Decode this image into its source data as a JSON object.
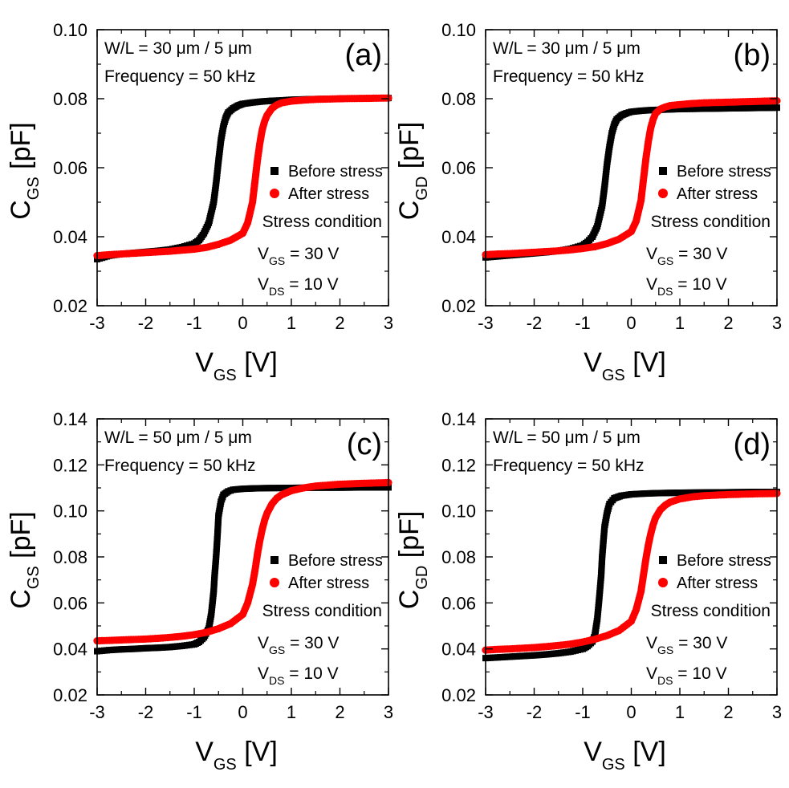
{
  "chart_data": [
    {
      "type": "scatter",
      "panel_label": "(a)",
      "xlabel": {
        "main": "V",
        "sub": "GS",
        "unit": " [V]"
      },
      "ylabel": {
        "main": "C",
        "sub": "GS",
        "unit": " [pF]"
      },
      "xlim": [
        -3,
        3
      ],
      "ylim": [
        0.02,
        0.1
      ],
      "xticks": [
        -3,
        -2,
        -1,
        0,
        1,
        2,
        3
      ],
      "yticks": [
        0.02,
        0.04,
        0.06,
        0.08,
        0.1
      ],
      "xtick_labels": [
        "-3",
        "-2",
        "-1",
        "0",
        "1",
        "2",
        "3"
      ],
      "ytick_labels": [
        "0.02",
        "0.04",
        "0.06",
        "0.08",
        "0.10"
      ],
      "annotation_lines": [
        "W/L = 30 μm / 5 μm",
        "Frequency = 50 kHz"
      ],
      "legend_placement": "right-middle",
      "stress_condition": {
        "title": "Stress condition",
        "lines": [
          {
            "main": "V",
            "sub": "GS",
            "rest": " = 30 V"
          },
          {
            "main": "V",
            "sub": "DS",
            "rest": " = 10 V"
          }
        ]
      },
      "series": [
        {
          "name": "Before stress",
          "marker": "square",
          "color": "#000000",
          "x": [
            -3.0,
            -2.75,
            -2.5,
            -2.25,
            -2.0,
            -1.75,
            -1.5,
            -1.25,
            -1.0,
            -0.9,
            -0.8,
            -0.7,
            -0.6,
            -0.55,
            -0.5,
            -0.45,
            -0.4,
            -0.35,
            -0.3,
            -0.2,
            -0.1,
            0.0,
            0.2,
            0.4,
            0.6,
            0.8,
            1.0,
            1.5,
            2.0,
            2.5,
            3.0
          ],
          "y": [
            0.0335,
            0.0345,
            0.035,
            0.0353,
            0.0356,
            0.0359,
            0.0363,
            0.037,
            0.038,
            0.039,
            0.041,
            0.044,
            0.05,
            0.0555,
            0.062,
            0.068,
            0.072,
            0.0745,
            0.076,
            0.0772,
            0.078,
            0.0785,
            0.0789,
            0.0792,
            0.0794,
            0.0795,
            0.0797,
            0.0799,
            0.08,
            0.0801,
            0.0802
          ]
        },
        {
          "name": "After stress",
          "marker": "circle",
          "color": "#ff0000",
          "x": [
            -3.0,
            -2.75,
            -2.5,
            -2.25,
            -2.0,
            -1.75,
            -1.5,
            -1.25,
            -1.0,
            -0.75,
            -0.5,
            -0.25,
            0.0,
            0.1,
            0.2,
            0.25,
            0.3,
            0.35,
            0.4,
            0.45,
            0.5,
            0.6,
            0.7,
            0.8,
            1.0,
            1.25,
            1.5,
            2.0,
            2.5,
            3.0
          ],
          "y": [
            0.0345,
            0.0348,
            0.035,
            0.0352,
            0.0354,
            0.0356,
            0.0358,
            0.0361,
            0.0364,
            0.0369,
            0.0378,
            0.039,
            0.041,
            0.044,
            0.05,
            0.056,
            0.062,
            0.067,
            0.071,
            0.0735,
            0.0752,
            0.0772,
            0.0782,
            0.0788,
            0.0793,
            0.0796,
            0.0798,
            0.08,
            0.0801,
            0.0802
          ]
        }
      ]
    },
    {
      "type": "scatter",
      "panel_label": "(b)",
      "xlabel": {
        "main": "V",
        "sub": "GS",
        "unit": " [V]"
      },
      "ylabel": {
        "main": "C",
        "sub": "GD",
        "unit": " [pF]"
      },
      "xlim": [
        -3,
        3
      ],
      "ylim": [
        0.02,
        0.1
      ],
      "xticks": [
        -3,
        -2,
        -1,
        0,
        1,
        2,
        3
      ],
      "yticks": [
        0.02,
        0.04,
        0.06,
        0.08,
        0.1
      ],
      "xtick_labels": [
        "-3",
        "-2",
        "-1",
        "0",
        "1",
        "2",
        "3"
      ],
      "ytick_labels": [
        "0.02",
        "0.04",
        "0.06",
        "0.08",
        "0.10"
      ],
      "annotation_lines": [
        "W/L = 30 μm / 5 μm",
        "Frequency = 50 kHz"
      ],
      "legend_placement": "right-middle",
      "stress_condition": {
        "title": "Stress condition",
        "lines": [
          {
            "main": "V",
            "sub": "GS",
            "rest": " = 30 V"
          },
          {
            "main": "V",
            "sub": "DS",
            "rest": " = 10 V"
          }
        ]
      },
      "series": [
        {
          "name": "Before stress",
          "marker": "square",
          "color": "#000000",
          "x": [
            -3.0,
            -2.75,
            -2.5,
            -2.25,
            -2.0,
            -1.75,
            -1.5,
            -1.25,
            -1.0,
            -0.9,
            -0.8,
            -0.7,
            -0.6,
            -0.55,
            -0.5,
            -0.45,
            -0.4,
            -0.35,
            -0.3,
            -0.2,
            -0.1,
            0.0,
            0.2,
            0.4,
            0.6,
            0.8,
            1.0,
            1.5,
            2.0,
            2.5,
            3.0
          ],
          "y": [
            0.034,
            0.0343,
            0.0346,
            0.0349,
            0.0352,
            0.0355,
            0.0359,
            0.0365,
            0.0375,
            0.0385,
            0.04,
            0.043,
            0.049,
            0.0545,
            0.061,
            0.066,
            0.07,
            0.0725,
            0.074,
            0.0752,
            0.0758,
            0.0762,
            0.0765,
            0.0767,
            0.0768,
            0.0769,
            0.077,
            0.0771,
            0.0772,
            0.0773,
            0.0774
          ]
        },
        {
          "name": "After stress",
          "marker": "circle",
          "color": "#ff0000",
          "x": [
            -3.0,
            -2.75,
            -2.5,
            -2.25,
            -2.0,
            -1.75,
            -1.5,
            -1.25,
            -1.0,
            -0.75,
            -0.5,
            -0.25,
            0.0,
            0.1,
            0.2,
            0.25,
            0.3,
            0.35,
            0.4,
            0.45,
            0.5,
            0.6,
            0.7,
            0.8,
            1.0,
            1.25,
            1.5,
            2.0,
            2.5,
            3.0
          ],
          "y": [
            0.0348,
            0.035,
            0.0351,
            0.0353,
            0.0355,
            0.0357,
            0.0359,
            0.0362,
            0.0366,
            0.0371,
            0.038,
            0.0393,
            0.0415,
            0.0445,
            0.0505,
            0.0565,
            0.0625,
            0.0675,
            0.0715,
            0.074,
            0.0757,
            0.077,
            0.0776,
            0.078,
            0.0783,
            0.0786,
            0.0788,
            0.079,
            0.0792,
            0.0794
          ]
        }
      ]
    },
    {
      "type": "scatter",
      "panel_label": "(c)",
      "xlabel": {
        "main": "V",
        "sub": "GS",
        "unit": " [V]"
      },
      "ylabel": {
        "main": "C",
        "sub": "GS",
        "unit": " [pF]"
      },
      "xlim": [
        -3,
        3
      ],
      "ylim": [
        0.02,
        0.14
      ],
      "xticks": [
        -3,
        -2,
        -1,
        0,
        1,
        2,
        3
      ],
      "yticks": [
        0.02,
        0.04,
        0.06,
        0.08,
        0.1,
        0.12,
        0.14
      ],
      "xtick_labels": [
        "-3",
        "-2",
        "-1",
        "0",
        "1",
        "2",
        "3"
      ],
      "ytick_labels": [
        "0.02",
        "0.04",
        "0.06",
        "0.08",
        "0.10",
        "0.12",
        "0.14"
      ],
      "annotation_lines": [
        "W/L = 50 μm / 5 μm",
        "Frequency = 50 kHz"
      ],
      "legend_placement": "right-middle",
      "stress_condition": {
        "title": "Stress condition",
        "lines": [
          {
            "main": "V",
            "sub": "GS",
            "rest": " = 30 V"
          },
          {
            "main": "V",
            "sub": "DS",
            "rest": " = 10 V"
          }
        ]
      },
      "series": [
        {
          "name": "Before stress",
          "marker": "square",
          "color": "#000000",
          "x": [
            -3.0,
            -2.75,
            -2.5,
            -2.25,
            -2.0,
            -1.75,
            -1.5,
            -1.25,
            -1.0,
            -0.9,
            -0.8,
            -0.7,
            -0.65,
            -0.6,
            -0.58,
            -0.55,
            -0.52,
            -0.5,
            -0.45,
            -0.4,
            -0.3,
            -0.2,
            0.0,
            0.25,
            0.5,
            1.0,
            1.5,
            2.0,
            2.5,
            3.0
          ],
          "y": [
            0.039,
            0.0395,
            0.0398,
            0.04,
            0.0403,
            0.0405,
            0.0408,
            0.0413,
            0.042,
            0.043,
            0.045,
            0.049,
            0.055,
            0.065,
            0.072,
            0.08,
            0.09,
            0.098,
            0.104,
            0.107,
            0.1085,
            0.1092,
            0.1096,
            0.1098,
            0.1099,
            0.11,
            0.1101,
            0.1101,
            0.1102,
            0.1102
          ]
        },
        {
          "name": "After stress",
          "marker": "circle",
          "color": "#ff0000",
          "x": [
            -3.0,
            -2.75,
            -2.5,
            -2.25,
            -2.0,
            -1.75,
            -1.5,
            -1.25,
            -1.0,
            -0.75,
            -0.5,
            -0.25,
            0.0,
            0.1,
            0.2,
            0.25,
            0.3,
            0.35,
            0.4,
            0.45,
            0.5,
            0.6,
            0.7,
            0.8,
            1.0,
            1.25,
            1.5,
            2.0,
            2.5,
            3.0
          ],
          "y": [
            0.0435,
            0.0437,
            0.0439,
            0.0441,
            0.0443,
            0.0446,
            0.045,
            0.0455,
            0.0462,
            0.0472,
            0.0488,
            0.051,
            0.055,
            0.06,
            0.068,
            0.074,
            0.081,
            0.087,
            0.092,
            0.096,
            0.099,
            0.103,
            0.1055,
            0.107,
            0.1088,
            0.11,
            0.1108,
            0.1116,
            0.112,
            0.1123
          ]
        }
      ]
    },
    {
      "type": "scatter",
      "panel_label": "(d)",
      "xlabel": {
        "main": "V",
        "sub": "GS",
        "unit": " [V]"
      },
      "ylabel": {
        "main": "C",
        "sub": "GD",
        "unit": " [pF]"
      },
      "xlim": [
        -3,
        3
      ],
      "ylim": [
        0.02,
        0.14
      ],
      "xticks": [
        -3,
        -2,
        -1,
        0,
        1,
        2,
        3
      ],
      "yticks": [
        0.02,
        0.04,
        0.06,
        0.08,
        0.1,
        0.12,
        0.14
      ],
      "xtick_labels": [
        "-3",
        "-2",
        "-1",
        "0",
        "1",
        "2",
        "3"
      ],
      "ytick_labels": [
        "0.02",
        "0.04",
        "0.06",
        "0.08",
        "0.10",
        "0.12",
        "0.14"
      ],
      "annotation_lines": [
        "W/L = 50 μm / 5 μm",
        "Frequency = 50 kHz"
      ],
      "legend_placement": "right-middle",
      "stress_condition": {
        "title": "Stress condition",
        "lines": [
          {
            "main": "V",
            "sub": "GS",
            "rest": " = 30 V"
          },
          {
            "main": "V",
            "sub": "DS",
            "rest": " = 10 V"
          }
        ]
      },
      "series": [
        {
          "name": "Before stress",
          "marker": "square",
          "color": "#000000",
          "x": [
            -3.0,
            -2.75,
            -2.5,
            -2.25,
            -2.0,
            -1.75,
            -1.5,
            -1.25,
            -1.0,
            -0.9,
            -0.8,
            -0.75,
            -0.7,
            -0.66,
            -0.62,
            -0.6,
            -0.57,
            -0.55,
            -0.5,
            -0.45,
            -0.35,
            -0.2,
            0.0,
            0.25,
            0.5,
            1.0,
            1.5,
            2.0,
            2.5,
            3.0
          ],
          "y": [
            0.036,
            0.0363,
            0.0366,
            0.0369,
            0.0372,
            0.0376,
            0.0381,
            0.0388,
            0.04,
            0.0412,
            0.0432,
            0.046,
            0.053,
            0.062,
            0.072,
            0.08,
            0.088,
            0.093,
            0.099,
            0.103,
            0.1055,
            0.1066,
            0.1072,
            0.1075,
            0.1077,
            0.1079,
            0.108,
            0.1081,
            0.1082,
            0.1082
          ]
        },
        {
          "name": "After stress",
          "marker": "circle",
          "color": "#ff0000",
          "x": [
            -3.0,
            -2.75,
            -2.5,
            -2.25,
            -2.0,
            -1.75,
            -1.5,
            -1.25,
            -1.0,
            -0.75,
            -0.5,
            -0.25,
            0.0,
            0.1,
            0.2,
            0.25,
            0.3,
            0.35,
            0.4,
            0.45,
            0.5,
            0.6,
            0.7,
            0.8,
            1.0,
            1.25,
            1.5,
            2.0,
            2.5,
            3.0
          ],
          "y": [
            0.0395,
            0.0398,
            0.04,
            0.0403,
            0.0406,
            0.041,
            0.0415,
            0.0421,
            0.043,
            0.0442,
            0.0458,
            0.048,
            0.052,
            0.057,
            0.065,
            0.072,
            0.079,
            0.085,
            0.09,
            0.094,
            0.097,
            0.1005,
            0.1025,
            0.1038,
            0.1052,
            0.1061,
            0.1066,
            0.1071,
            0.1074,
            0.1076
          ]
        }
      ]
    }
  ]
}
